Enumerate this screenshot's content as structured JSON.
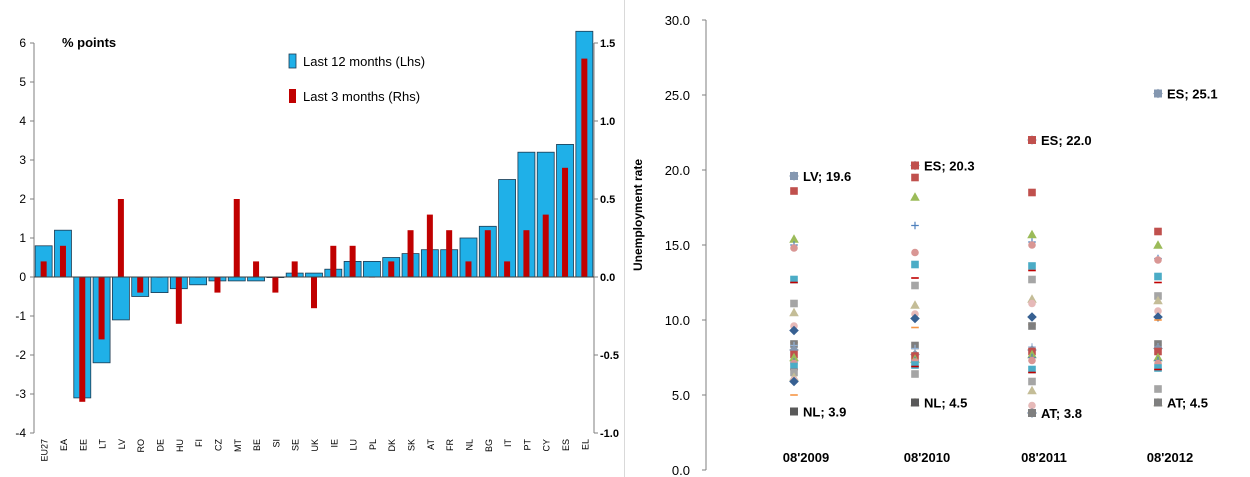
{
  "chart_data": [
    {
      "type": "bar",
      "title": "% points",
      "categories": [
        "EU27",
        "EA",
        "EE",
        "LT",
        "LV",
        "RO",
        "DE",
        "HU",
        "FI",
        "CZ",
        "MT",
        "BE",
        "SI",
        "SE",
        "UK",
        "IE",
        "LU",
        "PL",
        "DK",
        "SK",
        "AT",
        "FR",
        "NL",
        "BG",
        "IT",
        "PT",
        "CY",
        "ES",
        "EL"
      ],
      "series": [
        {
          "name": "Last 12 months (Lhs)",
          "axis": "left",
          "color": "#1fb0e8",
          "values": [
            0.8,
            1.2,
            -3.1,
            -2.2,
            -1.1,
            -0.5,
            -0.4,
            -0.3,
            -0.2,
            -0.1,
            -0.1,
            -0.1,
            0.0,
            0.1,
            0.1,
            0.2,
            0.4,
            0.4,
            0.5,
            0.6,
            0.7,
            0.7,
            1.0,
            1.3,
            2.5,
            3.2,
            3.2,
            3.4,
            6.3
          ]
        },
        {
          "name": "Last 3 months (Rhs)",
          "axis": "right",
          "color": "#c00000",
          "values": [
            0.1,
            0.2,
            -0.8,
            -0.4,
            0.5,
            -0.1,
            0.0,
            -0.3,
            0.0,
            -0.1,
            0.5,
            0.1,
            -0.1,
            0.1,
            -0.2,
            0.2,
            0.2,
            0.0,
            0.1,
            0.3,
            0.4,
            0.3,
            0.1,
            0.3,
            0.1,
            0.3,
            0.4,
            0.7,
            1.4
          ]
        }
      ],
      "ylim": [
        -4,
        6
      ],
      "yticks": [
        "6",
        "5",
        "4",
        "3",
        "2",
        "1",
        "0",
        "-1",
        "-2",
        "-3",
        "-4"
      ],
      "y2lim": [
        -1.0,
        1.5
      ],
      "y2ticks": [
        "1.5",
        "1.0",
        "0.5",
        "0.0",
        "-0.5",
        "-1.0"
      ],
      "legend_position": "top-center",
      "grid": false
    },
    {
      "type": "scatter",
      "ylabel": "Unemployment rate",
      "categories": [
        "08'2009",
        "08'2010",
        "08'2011",
        "08'2012"
      ],
      "ylim": [
        0,
        30
      ],
      "yticks": [
        "30.0",
        "25.0",
        "20.0",
        "15.0",
        "10.0",
        "5.0",
        "0.0"
      ],
      "labels": [
        {
          "text": "LV; 19.6",
          "category": "08'2009",
          "value": 19.6,
          "color": "#8497b0"
        },
        {
          "text": "NL; 3.9",
          "category": "08'2009",
          "value": 3.9,
          "color": "#595959"
        },
        {
          "text": "ES; 20.3",
          "category": "08'2010",
          "value": 20.3,
          "color": "#c0504d"
        },
        {
          "text": "NL; 4.5",
          "category": "08'2010",
          "value": 4.5,
          "color": "#595959"
        },
        {
          "text": "ES; 22.0",
          "category": "08'2011",
          "value": 22.0,
          "color": "#c0504d"
        },
        {
          "text": "AT; 3.8",
          "category": "08'2011",
          "value": 3.8,
          "color": "#7f7f7f"
        },
        {
          "text": "ES; 25.1",
          "category": "08'2012",
          "value": 25.1,
          "color": "#8497b0"
        },
        {
          "text": "AT; 4.5",
          "category": "08'2012",
          "value": 4.5,
          "color": "#7f7f7f"
        }
      ],
      "series": [
        {
          "category": "08'2009",
          "values": [
            19.6,
            18.6,
            15.4,
            15.0,
            14.8,
            12.7,
            12.5,
            11.1,
            10.5,
            9.6,
            9.3,
            8.5,
            8.4,
            8.3,
            8.0,
            7.7,
            7.5,
            7.2,
            7.1,
            6.9,
            6.7,
            6.5,
            6.2,
            6.0,
            5.9,
            5.0,
            3.9
          ]
        },
        {
          "category": "08'2010",
          "values": [
            20.3,
            19.5,
            18.2,
            16.3,
            14.5,
            13.7,
            12.8,
            12.3,
            11.0,
            10.4,
            10.1,
            9.5,
            8.3,
            8.1,
            7.7,
            7.6,
            7.4,
            7.3,
            7.2,
            7.0,
            6.9,
            6.4,
            4.5
          ]
        },
        {
          "category": "08'2011",
          "values": [
            22.0,
            18.5,
            15.7,
            15.2,
            15.0,
            13.6,
            13.3,
            12.7,
            11.4,
            11.1,
            10.2,
            9.7,
            9.6,
            8.2,
            8.0,
            7.9,
            7.7,
            7.5,
            7.3,
            6.7,
            6.5,
            5.9,
            5.3,
            4.3,
            3.8
          ]
        },
        {
          "category": "08'2012",
          "values": [
            25.1,
            15.9,
            15.0,
            14.1,
            14.0,
            12.9,
            12.5,
            11.6,
            11.3,
            10.6,
            10.2,
            10.0,
            8.4,
            8.2,
            8.1,
            7.9,
            7.5,
            7.3,
            7.1,
            6.8,
            6.7,
            5.4,
            4.5
          ]
        }
      ]
    }
  ]
}
